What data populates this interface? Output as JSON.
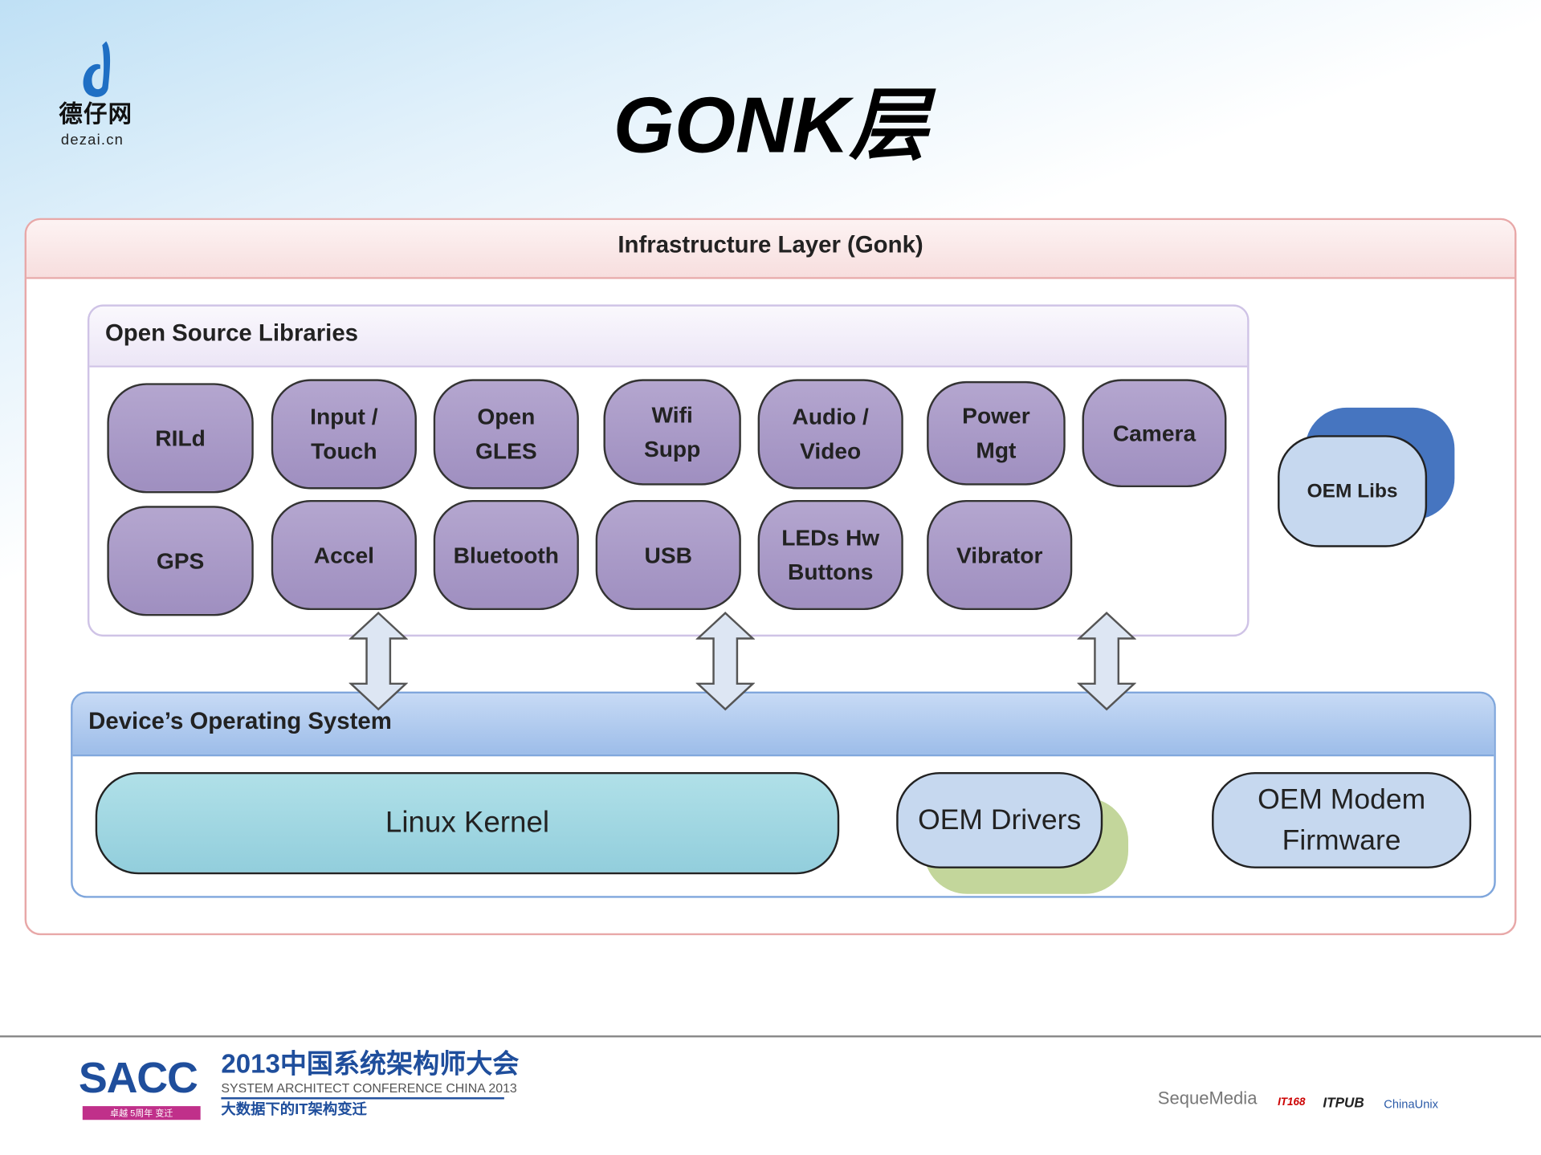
{
  "logo": {
    "name_cn": "德仔网",
    "domain": "dezai.cn"
  },
  "title": "GONK层",
  "diagram": {
    "infrastructure_layer": "Infrastructure Layer (Gonk)",
    "open_source_libraries": {
      "header": "Open Source Libraries",
      "row1": [
        "RILd",
        "Input /\nTouch",
        "Open\nGLES",
        "Wifi\nSupp",
        "Audio /\nVideo",
        "Power\nMgt",
        "Camera"
      ],
      "row2": [
        "GPS",
        "Accel",
        "Bluetooth",
        "USB",
        "LEDs Hw\nButtons",
        "Vibrator"
      ]
    },
    "oem_libs": "OEM Libs",
    "device_os": {
      "header": "Device’s Operating System",
      "linux_kernel": "Linux Kernel",
      "oem_drivers": "OEM Drivers",
      "oem_modem": "OEM Modem\nFirmware"
    },
    "colors": {
      "library_pill": "#a898c6",
      "kernel": "#9fd6e0",
      "oem": "#c6d8ef",
      "oem_libs_shadow": "#4675c0",
      "oem_drivers_shadow": "#c3d69b"
    }
  },
  "footer": {
    "sacc": "SACC",
    "sacc_badge": "卓越 5周年 变迁",
    "conference_cn": "2013中国系统架构师大会",
    "conference_en": "SYSTEM ARCHITECT CONFERENCE CHINA 2013",
    "slogan": "大数据下的IT架构变迁",
    "sponsors": [
      "SequeMedia",
      "IT168",
      "ITPUB",
      "ChinaUnix"
    ]
  }
}
